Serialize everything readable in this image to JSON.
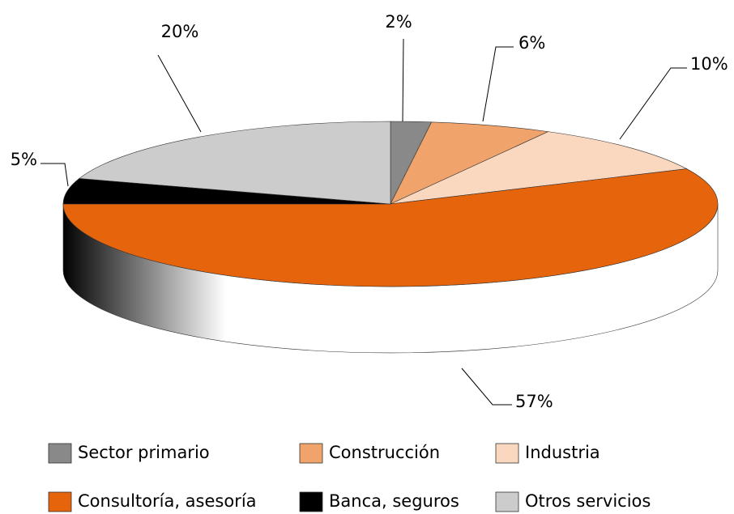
{
  "chart_data": {
    "type": "pie",
    "categories": [
      "Sector primario",
      "Construcción",
      "Industria",
      "Consultoría, asesoría",
      "Banca, seguros",
      "Otros servicios"
    ],
    "values": [
      2,
      6,
      10,
      57,
      5,
      20
    ],
    "value_labels": [
      "2%",
      "6%",
      "10%",
      "57%",
      "5%",
      "20%"
    ],
    "colors": [
      "#898989",
      "#f0a46c",
      "#f9d8bf",
      "#e5640c",
      "#000000",
      "#cccccc"
    ]
  }
}
